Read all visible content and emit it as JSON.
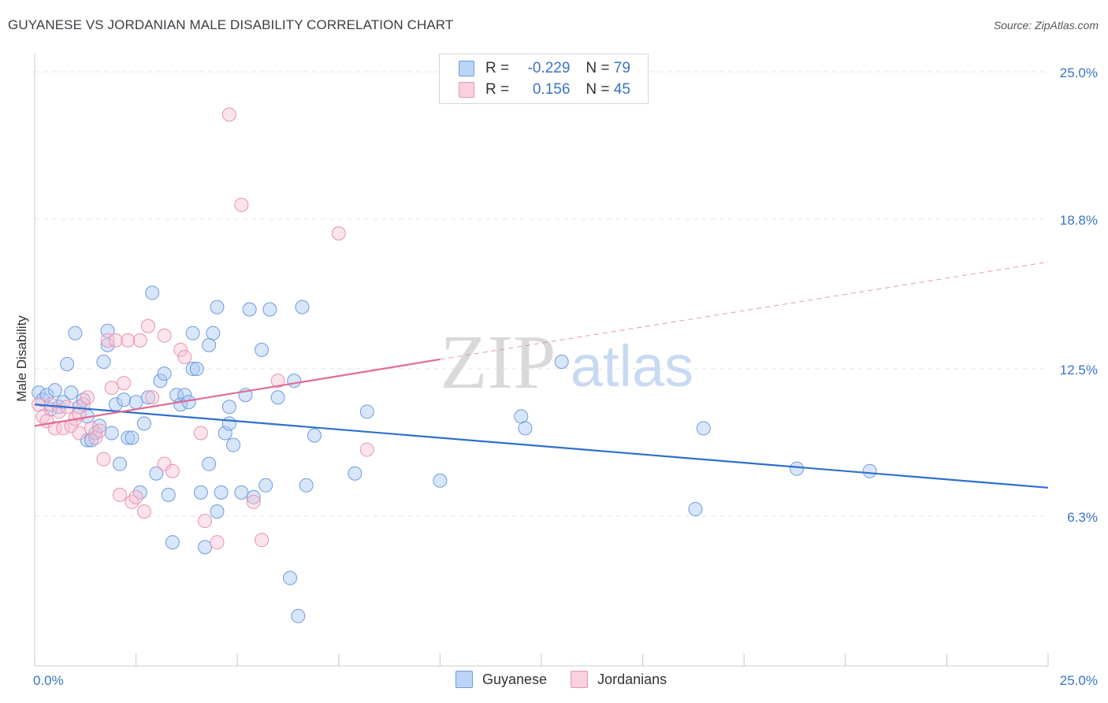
{
  "title": "GUYANESE VS JORDANIAN MALE DISABILITY CORRELATION CHART",
  "source": "Source: ZipAtlas.com",
  "watermark": {
    "zip": "ZIP",
    "atlas": "atlas"
  },
  "legend": {
    "rows": [
      {
        "r_label": "R =",
        "r_value": "-0.229",
        "n_label": "N =",
        "n_value": "79",
        "color": "#a9c8f3",
        "border": "#6d9bdc"
      },
      {
        "r_label": "R =",
        "r_value": "0.156",
        "n_label": "N =",
        "n_value": "45",
        "color": "#f9c3d5",
        "border": "#e693b0"
      }
    ]
  },
  "chart_data": {
    "type": "scatter",
    "ylabel": "Male Disability",
    "xlabel": "",
    "xlim": [
      0,
      25
    ],
    "ylim": [
      0,
      25.5
    ],
    "x_tick_labels": [
      {
        "value": 0,
        "label": "0.0%"
      },
      {
        "value": 25,
        "label": "25.0%"
      }
    ],
    "y_tick_labels": [
      {
        "value": 6.3,
        "label": "6.3%"
      },
      {
        "value": 12.5,
        "label": "12.5%"
      },
      {
        "value": 18.8,
        "label": "18.8%"
      },
      {
        "value": 25.0,
        "label": "25.0%"
      }
    ],
    "grid": true,
    "legend_position": "top-center",
    "series": [
      {
        "name": "Guyanese",
        "color": "#6d9bdc",
        "fill": "#a9c8f3",
        "trend": {
          "x0": 0,
          "y0": 11.0,
          "x1": 25,
          "y1": 7.5,
          "color": "#2f6fcc"
        },
        "points": [
          [
            0.1,
            11.5
          ],
          [
            0.2,
            11.2
          ],
          [
            0.3,
            11.4
          ],
          [
            0.4,
            10.8
          ],
          [
            0.5,
            11.6
          ],
          [
            0.6,
            10.9
          ],
          [
            0.7,
            11.1
          ],
          [
            0.8,
            12.7
          ],
          [
            0.9,
            11.5
          ],
          [
            1.0,
            14.0
          ],
          [
            1.1,
            10.9
          ],
          [
            1.2,
            11.2
          ],
          [
            1.3,
            10.5
          ],
          [
            1.3,
            9.5
          ],
          [
            1.4,
            9.5
          ],
          [
            1.5,
            9.8
          ],
          [
            1.6,
            10.1
          ],
          [
            1.7,
            12.8
          ],
          [
            1.8,
            13.5
          ],
          [
            1.8,
            14.1
          ],
          [
            1.9,
            9.8
          ],
          [
            2.0,
            11.0
          ],
          [
            2.1,
            8.5
          ],
          [
            2.2,
            11.2
          ],
          [
            2.3,
            9.6
          ],
          [
            2.4,
            9.6
          ],
          [
            2.5,
            11.1
          ],
          [
            2.6,
            7.3
          ],
          [
            2.7,
            10.2
          ],
          [
            2.8,
            11.3
          ],
          [
            2.9,
            15.7
          ],
          [
            3.0,
            8.1
          ],
          [
            3.1,
            12.0
          ],
          [
            3.2,
            12.3
          ],
          [
            3.3,
            7.2
          ],
          [
            3.4,
            5.2
          ],
          [
            3.5,
            11.4
          ],
          [
            3.6,
            11.0
          ],
          [
            3.7,
            11.4
          ],
          [
            3.8,
            11.1
          ],
          [
            3.9,
            14.0
          ],
          [
            3.9,
            12.5
          ],
          [
            4.0,
            12.5
          ],
          [
            4.1,
            7.3
          ],
          [
            4.2,
            5.0
          ],
          [
            4.3,
            8.5
          ],
          [
            4.3,
            13.5
          ],
          [
            4.4,
            14.0
          ],
          [
            4.5,
            6.5
          ],
          [
            4.5,
            15.1
          ],
          [
            4.6,
            7.3
          ],
          [
            4.7,
            9.8
          ],
          [
            4.8,
            10.2
          ],
          [
            4.8,
            10.9
          ],
          [
            4.9,
            9.3
          ],
          [
            5.1,
            7.3
          ],
          [
            5.2,
            11.4
          ],
          [
            5.3,
            15.0
          ],
          [
            5.4,
            7.1
          ],
          [
            5.6,
            13.3
          ],
          [
            5.7,
            7.6
          ],
          [
            5.8,
            15.0
          ],
          [
            6.0,
            11.3
          ],
          [
            6.3,
            3.7
          ],
          [
            6.4,
            12.0
          ],
          [
            6.5,
            2.1
          ],
          [
            6.6,
            15.1
          ],
          [
            6.7,
            7.6
          ],
          [
            6.9,
            9.7
          ],
          [
            7.9,
            8.1
          ],
          [
            8.2,
            10.7
          ],
          [
            10.0,
            7.8
          ],
          [
            12.0,
            10.5
          ],
          [
            12.1,
            10.0
          ],
          [
            13.0,
            12.8
          ],
          [
            16.3,
            6.6
          ],
          [
            16.5,
            10.0
          ],
          [
            18.8,
            8.3
          ],
          [
            20.6,
            8.2
          ]
        ]
      },
      {
        "name": "Jordanians",
        "color": "#e693b0",
        "fill": "#f9c3d5",
        "trend": {
          "x0": 0,
          "y0": 10.1,
          "x1": 10.0,
          "y1": 12.9,
          "color": "#e06b96",
          "dash_to": {
            "x": 25,
            "y": 17.0
          }
        },
        "points": [
          [
            0.1,
            11.0
          ],
          [
            0.2,
            10.5
          ],
          [
            0.3,
            10.3
          ],
          [
            0.4,
            11.0
          ],
          [
            0.5,
            10.0
          ],
          [
            0.6,
            10.7
          ],
          [
            0.7,
            10.0
          ],
          [
            0.8,
            10.9
          ],
          [
            0.9,
            10.1
          ],
          [
            1.0,
            10.4
          ],
          [
            1.1,
            9.8
          ],
          [
            1.2,
            11.0
          ],
          [
            1.3,
            11.3
          ],
          [
            1.4,
            10.0
          ],
          [
            1.5,
            9.6
          ],
          [
            1.6,
            9.9
          ],
          [
            1.7,
            8.7
          ],
          [
            1.8,
            13.7
          ],
          [
            1.9,
            11.7
          ],
          [
            2.0,
            13.7
          ],
          [
            2.1,
            7.2
          ],
          [
            2.2,
            11.9
          ],
          [
            2.3,
            13.7
          ],
          [
            2.4,
            6.9
          ],
          [
            2.5,
            7.1
          ],
          [
            2.6,
            13.7
          ],
          [
            2.7,
            6.5
          ],
          [
            2.8,
            14.3
          ],
          [
            2.9,
            11.3
          ],
          [
            3.2,
            8.5
          ],
          [
            3.2,
            13.9
          ],
          [
            3.4,
            8.2
          ],
          [
            3.6,
            13.3
          ],
          [
            3.7,
            13.0
          ],
          [
            4.1,
            9.8
          ],
          [
            4.2,
            6.1
          ],
          [
            4.5,
            5.2
          ],
          [
            4.8,
            23.2
          ],
          [
            5.1,
            19.4
          ],
          [
            5.4,
            6.9
          ],
          [
            5.6,
            5.3
          ],
          [
            6.0,
            12.0
          ],
          [
            7.5,
            18.2
          ],
          [
            8.2,
            9.1
          ],
          [
            1.1,
            10.6
          ]
        ]
      }
    ]
  }
}
